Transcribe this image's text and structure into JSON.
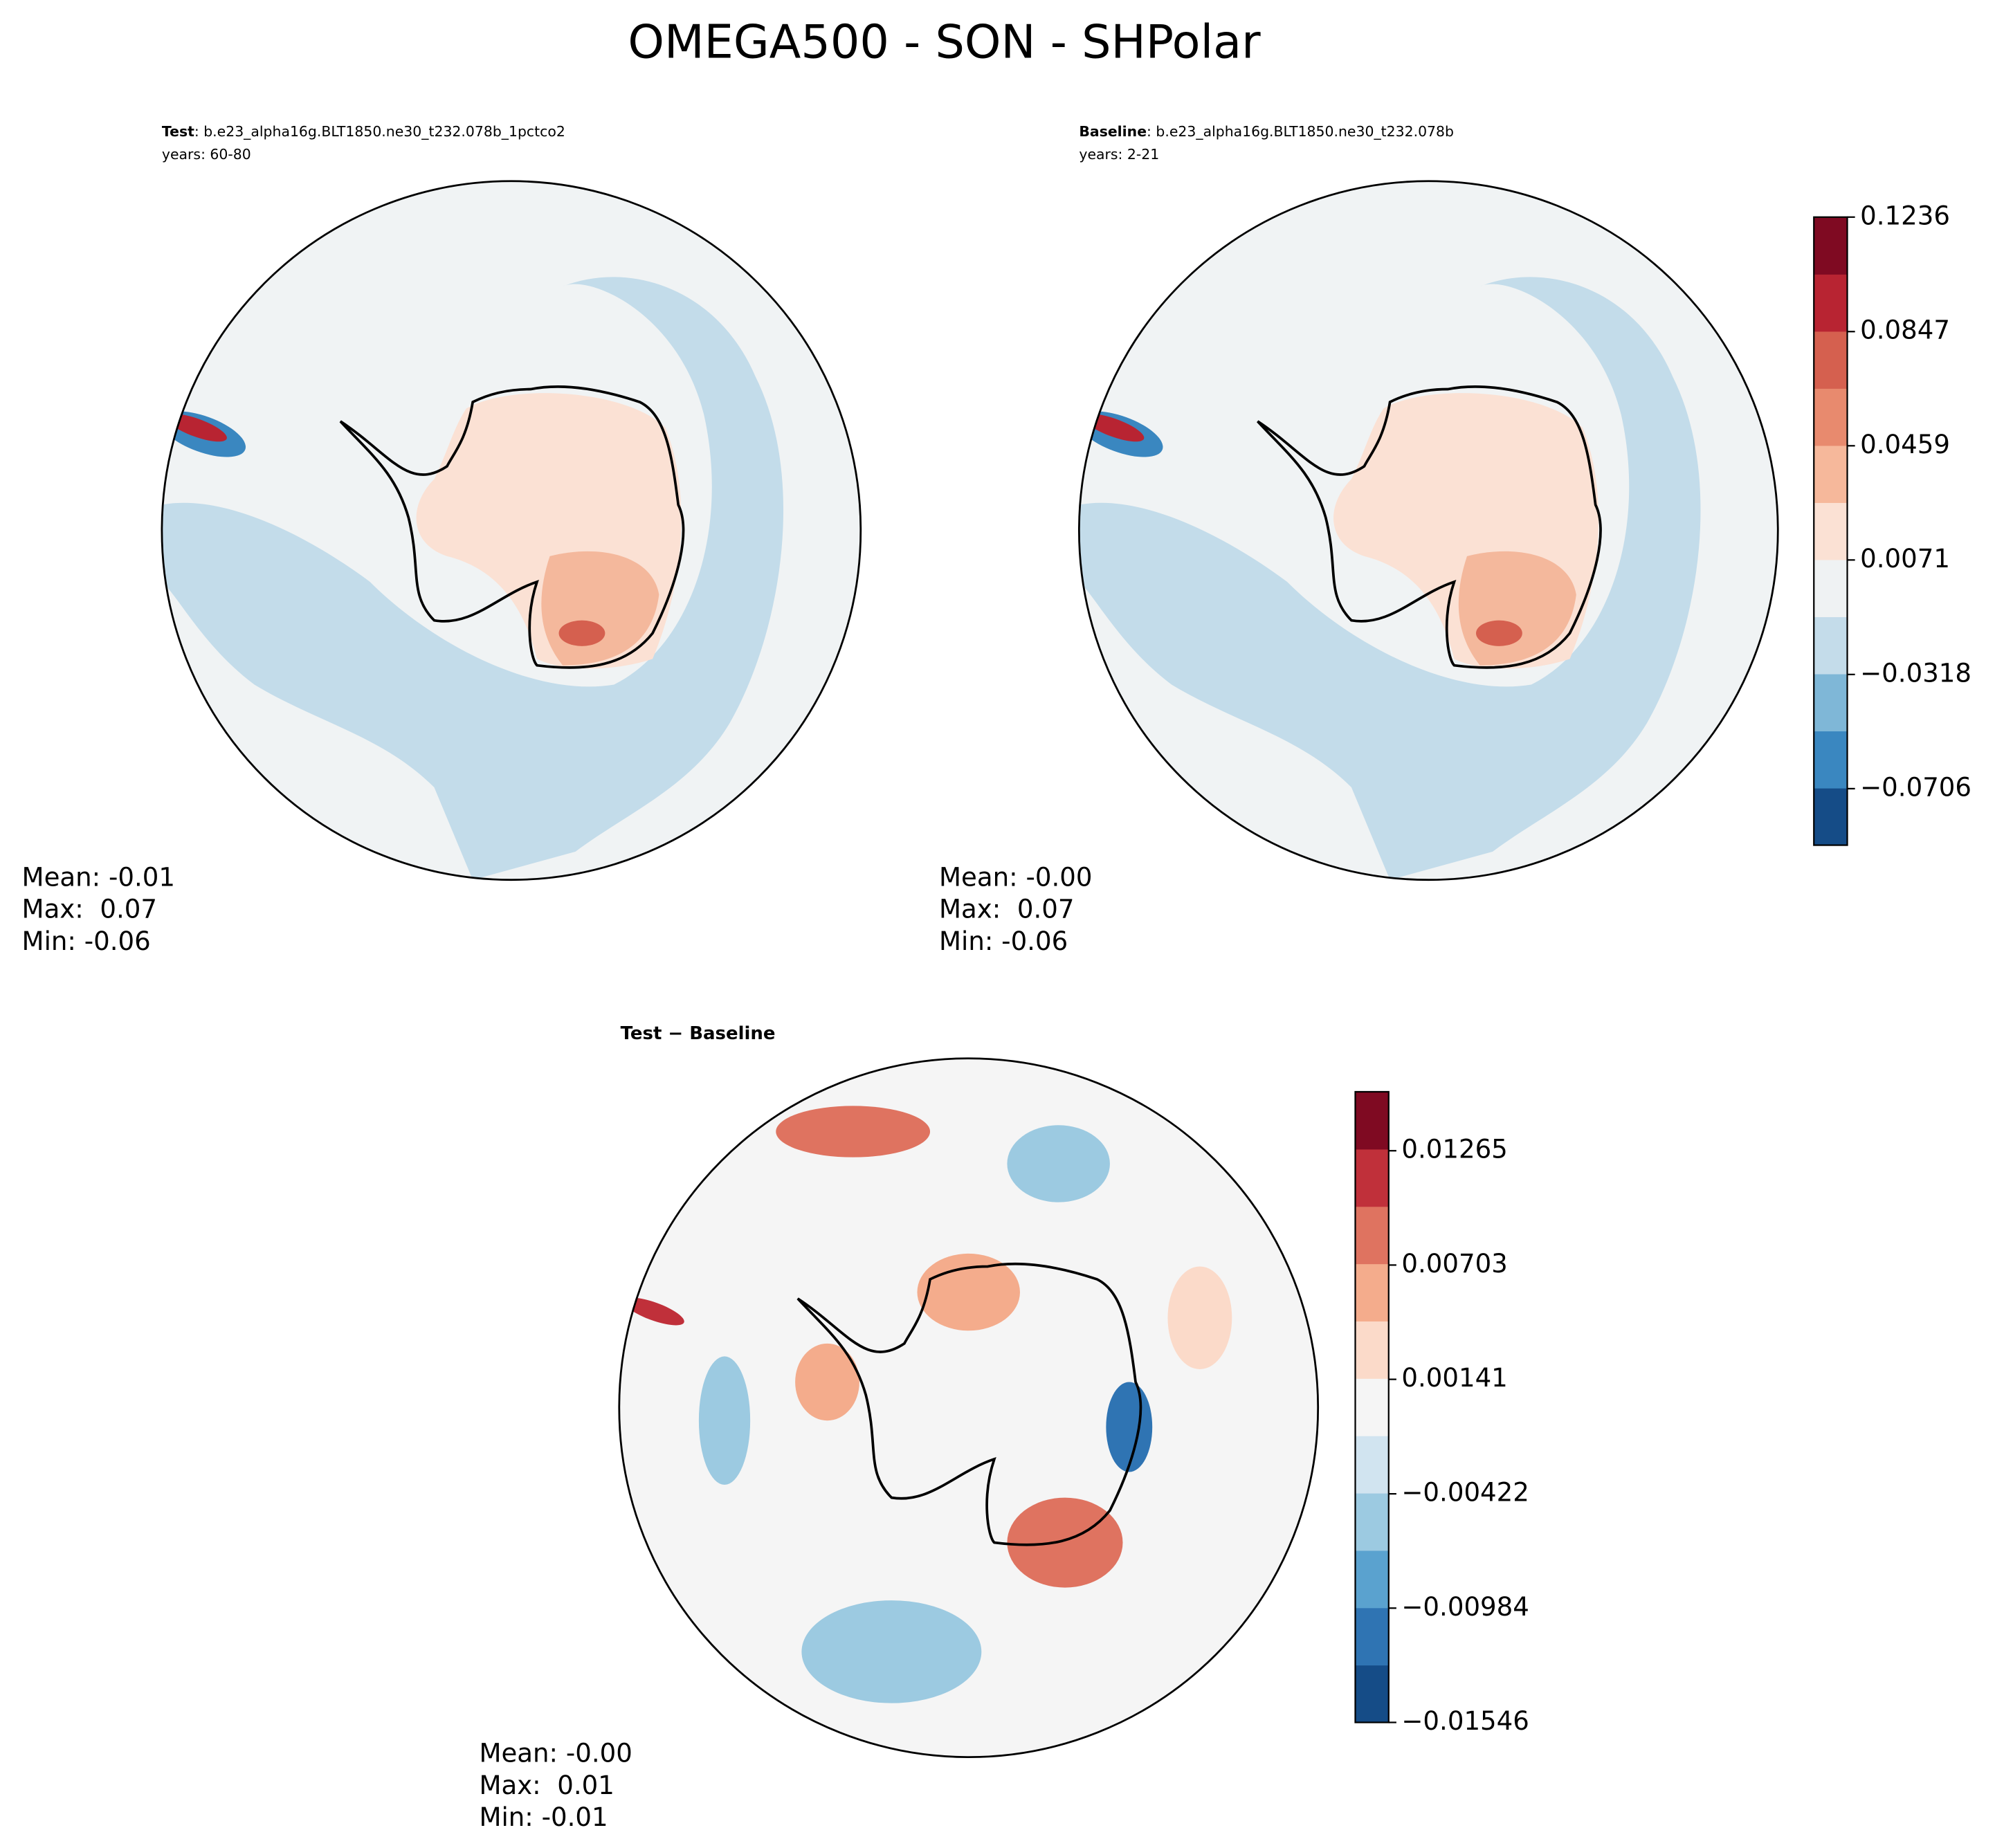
{
  "title": "OMEGA500 - SON - SHPolar",
  "panels": [
    {
      "name": "Test",
      "case": ": b.e23_alpha16g.BLT1850.ne30_t232.078b_1pctco2",
      "years": "years: 60-80",
      "stats": [
        "Mean: -0.01",
        "Max:  0.07",
        "Min: -0.06"
      ]
    },
    {
      "name": "Baseline",
      "case": ": b.e23_alpha16g.BLT1850.ne30_t232.078b",
      "years": "years: 2-21",
      "stats": [
        "Mean: -0.00",
        "Max:  0.07",
        "Min: -0.06"
      ]
    },
    {
      "name": "Test − Baseline",
      "stats": [
        "Mean: -0.00",
        "Max:  0.01",
        "Min: -0.01"
      ]
    }
  ],
  "colorbars": [
    {
      "lim": [
        -0.0898,
        0.1236
      ],
      "ticks": [
        {
          "value": -0.0706,
          "label": "−0.0706"
        },
        {
          "value": -0.0318,
          "label": "−0.0318"
        },
        0.0071,
        0.0459,
        0.0847,
        0.1236
      ],
      "colors": [
        "#154c87",
        "#3a87c0",
        "#7fb7d7",
        "#c4dcea",
        "#eff2f3",
        "#fbe1d4",
        "#f6b89b",
        "#e88a6e",
        "#d5604f",
        "#b82432",
        "#7f0a22"
      ]
    },
    {
      "lim": [
        -0.01546,
        0.01555
      ],
      "ticks": [
        {
          "value": -0.01546,
          "label": "−0.01546"
        },
        {
          "value": -0.00984,
          "label": "−0.00984"
        },
        {
          "value": -0.00422,
          "label": "−0.00422"
        },
        0.00141,
        0.00703,
        0.01265
      ],
      "colors": [
        "#154c87",
        "#2f74b3",
        "#5aa2cf",
        "#9ccae1",
        "#d1e4f0",
        "#f5f5f5",
        "#fbdac9",
        "#f4ac8c",
        "#df7360",
        "#c0303a",
        "#7f0a22"
      ]
    }
  ]
}
